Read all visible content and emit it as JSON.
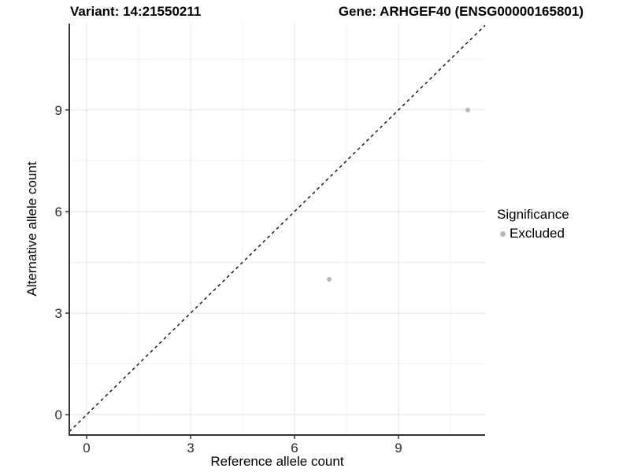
{
  "titles": {
    "variant": "Variant: 14:21550211",
    "gene": "Gene: ARHGEF40 (ENSG00000165801)"
  },
  "legend": {
    "title": "Significance",
    "items": [
      {
        "label": "Excluded",
        "color": "#b8b8b8"
      }
    ]
  },
  "colors": {
    "background": "#ffffff",
    "axis_line": "#333333",
    "tick_text": "#2b2b2b",
    "major_grid": "#e3e3e3",
    "minor_grid": "#f0f0f0",
    "identity_line": "#1a1a1a",
    "point": "#b8b8b8"
  },
  "chart_data": {
    "type": "scatter",
    "title_left": "Variant: 14:21550211",
    "title_right": "Gene: ARHGEF40 (ENSG00000165801)",
    "xlabel": "Reference allele count",
    "ylabel": "Alternative allele count",
    "xlim": [
      -0.5,
      11.5
    ],
    "ylim": [
      -0.6,
      11.55
    ],
    "x_ticks": [
      0,
      3,
      6,
      9
    ],
    "y_ticks": [
      0,
      3,
      6,
      9
    ],
    "x_minor_gridlines": [
      1.5,
      4.5,
      7.5,
      10.5
    ],
    "y_minor_gridlines": [
      1.5,
      4.5,
      7.5,
      10.5
    ],
    "grid": true,
    "legend_position": "right",
    "series": [
      {
        "name": "Excluded",
        "color": "#b8b8b8",
        "points": [
          {
            "x": 7,
            "y": 4
          },
          {
            "x": 11,
            "y": 9
          }
        ]
      }
    ],
    "reference_line": {
      "type": "identity",
      "style": "dashed",
      "from": [
        -0.5,
        -0.5
      ],
      "to": [
        11.5,
        11.5
      ]
    }
  }
}
